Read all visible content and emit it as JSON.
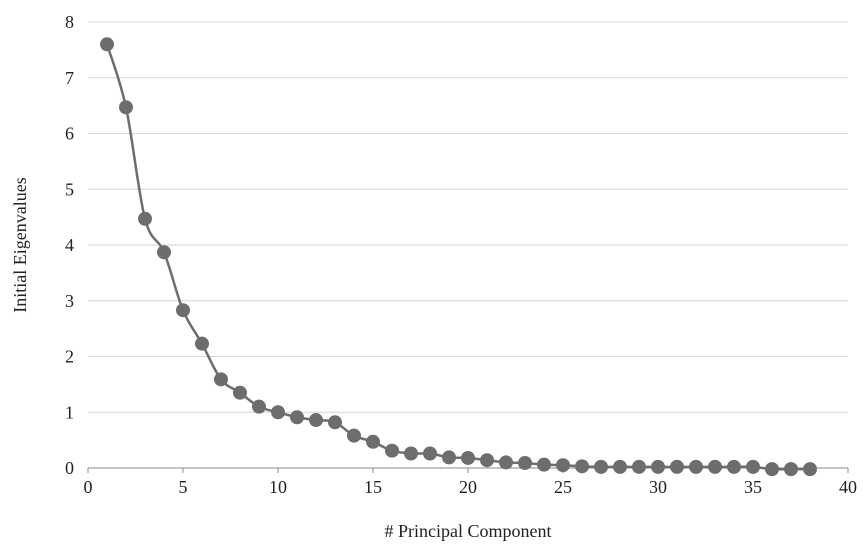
{
  "chart_data": {
    "type": "line",
    "title": "",
    "xlabel": "# Principal Component",
    "ylabel": "Initial Eigenvalues",
    "xlim": [
      0,
      40
    ],
    "ylim": [
      0,
      8
    ],
    "x_ticks": [
      "0",
      "5",
      "10",
      "15",
      "20",
      "25",
      "30",
      "35",
      "40"
    ],
    "y_ticks": [
      "0",
      "1",
      "2",
      "3",
      "4",
      "5",
      "6",
      "7",
      "8"
    ],
    "grid": "horizontal",
    "legend": "none",
    "marker": "circle",
    "smooth": true,
    "series": [
      {
        "color": "#6d6d6d",
        "x": [
          1,
          2,
          3,
          4,
          5,
          6,
          7,
          8,
          9,
          10,
          11,
          12,
          13,
          14,
          15,
          16,
          17,
          18,
          19,
          20,
          21,
          22,
          23,
          24,
          25,
          26,
          27,
          28,
          29,
          30,
          31,
          32,
          33,
          34,
          35,
          36,
          37,
          38
        ],
        "y": [
          7.6,
          6.47,
          4.47,
          3.87,
          2.83,
          2.23,
          1.59,
          1.35,
          1.1,
          1.0,
          0.91,
          0.86,
          0.82,
          0.58,
          0.47,
          0.31,
          0.26,
          0.26,
          0.19,
          0.18,
          0.14,
          0.1,
          0.09,
          0.06,
          0.05,
          0.03,
          0.02,
          0.02,
          0.02,
          0.02,
          0.02,
          0.02,
          0.02,
          0.02,
          0.02,
          -0.02,
          -0.02,
          -0.02
        ]
      }
    ]
  }
}
